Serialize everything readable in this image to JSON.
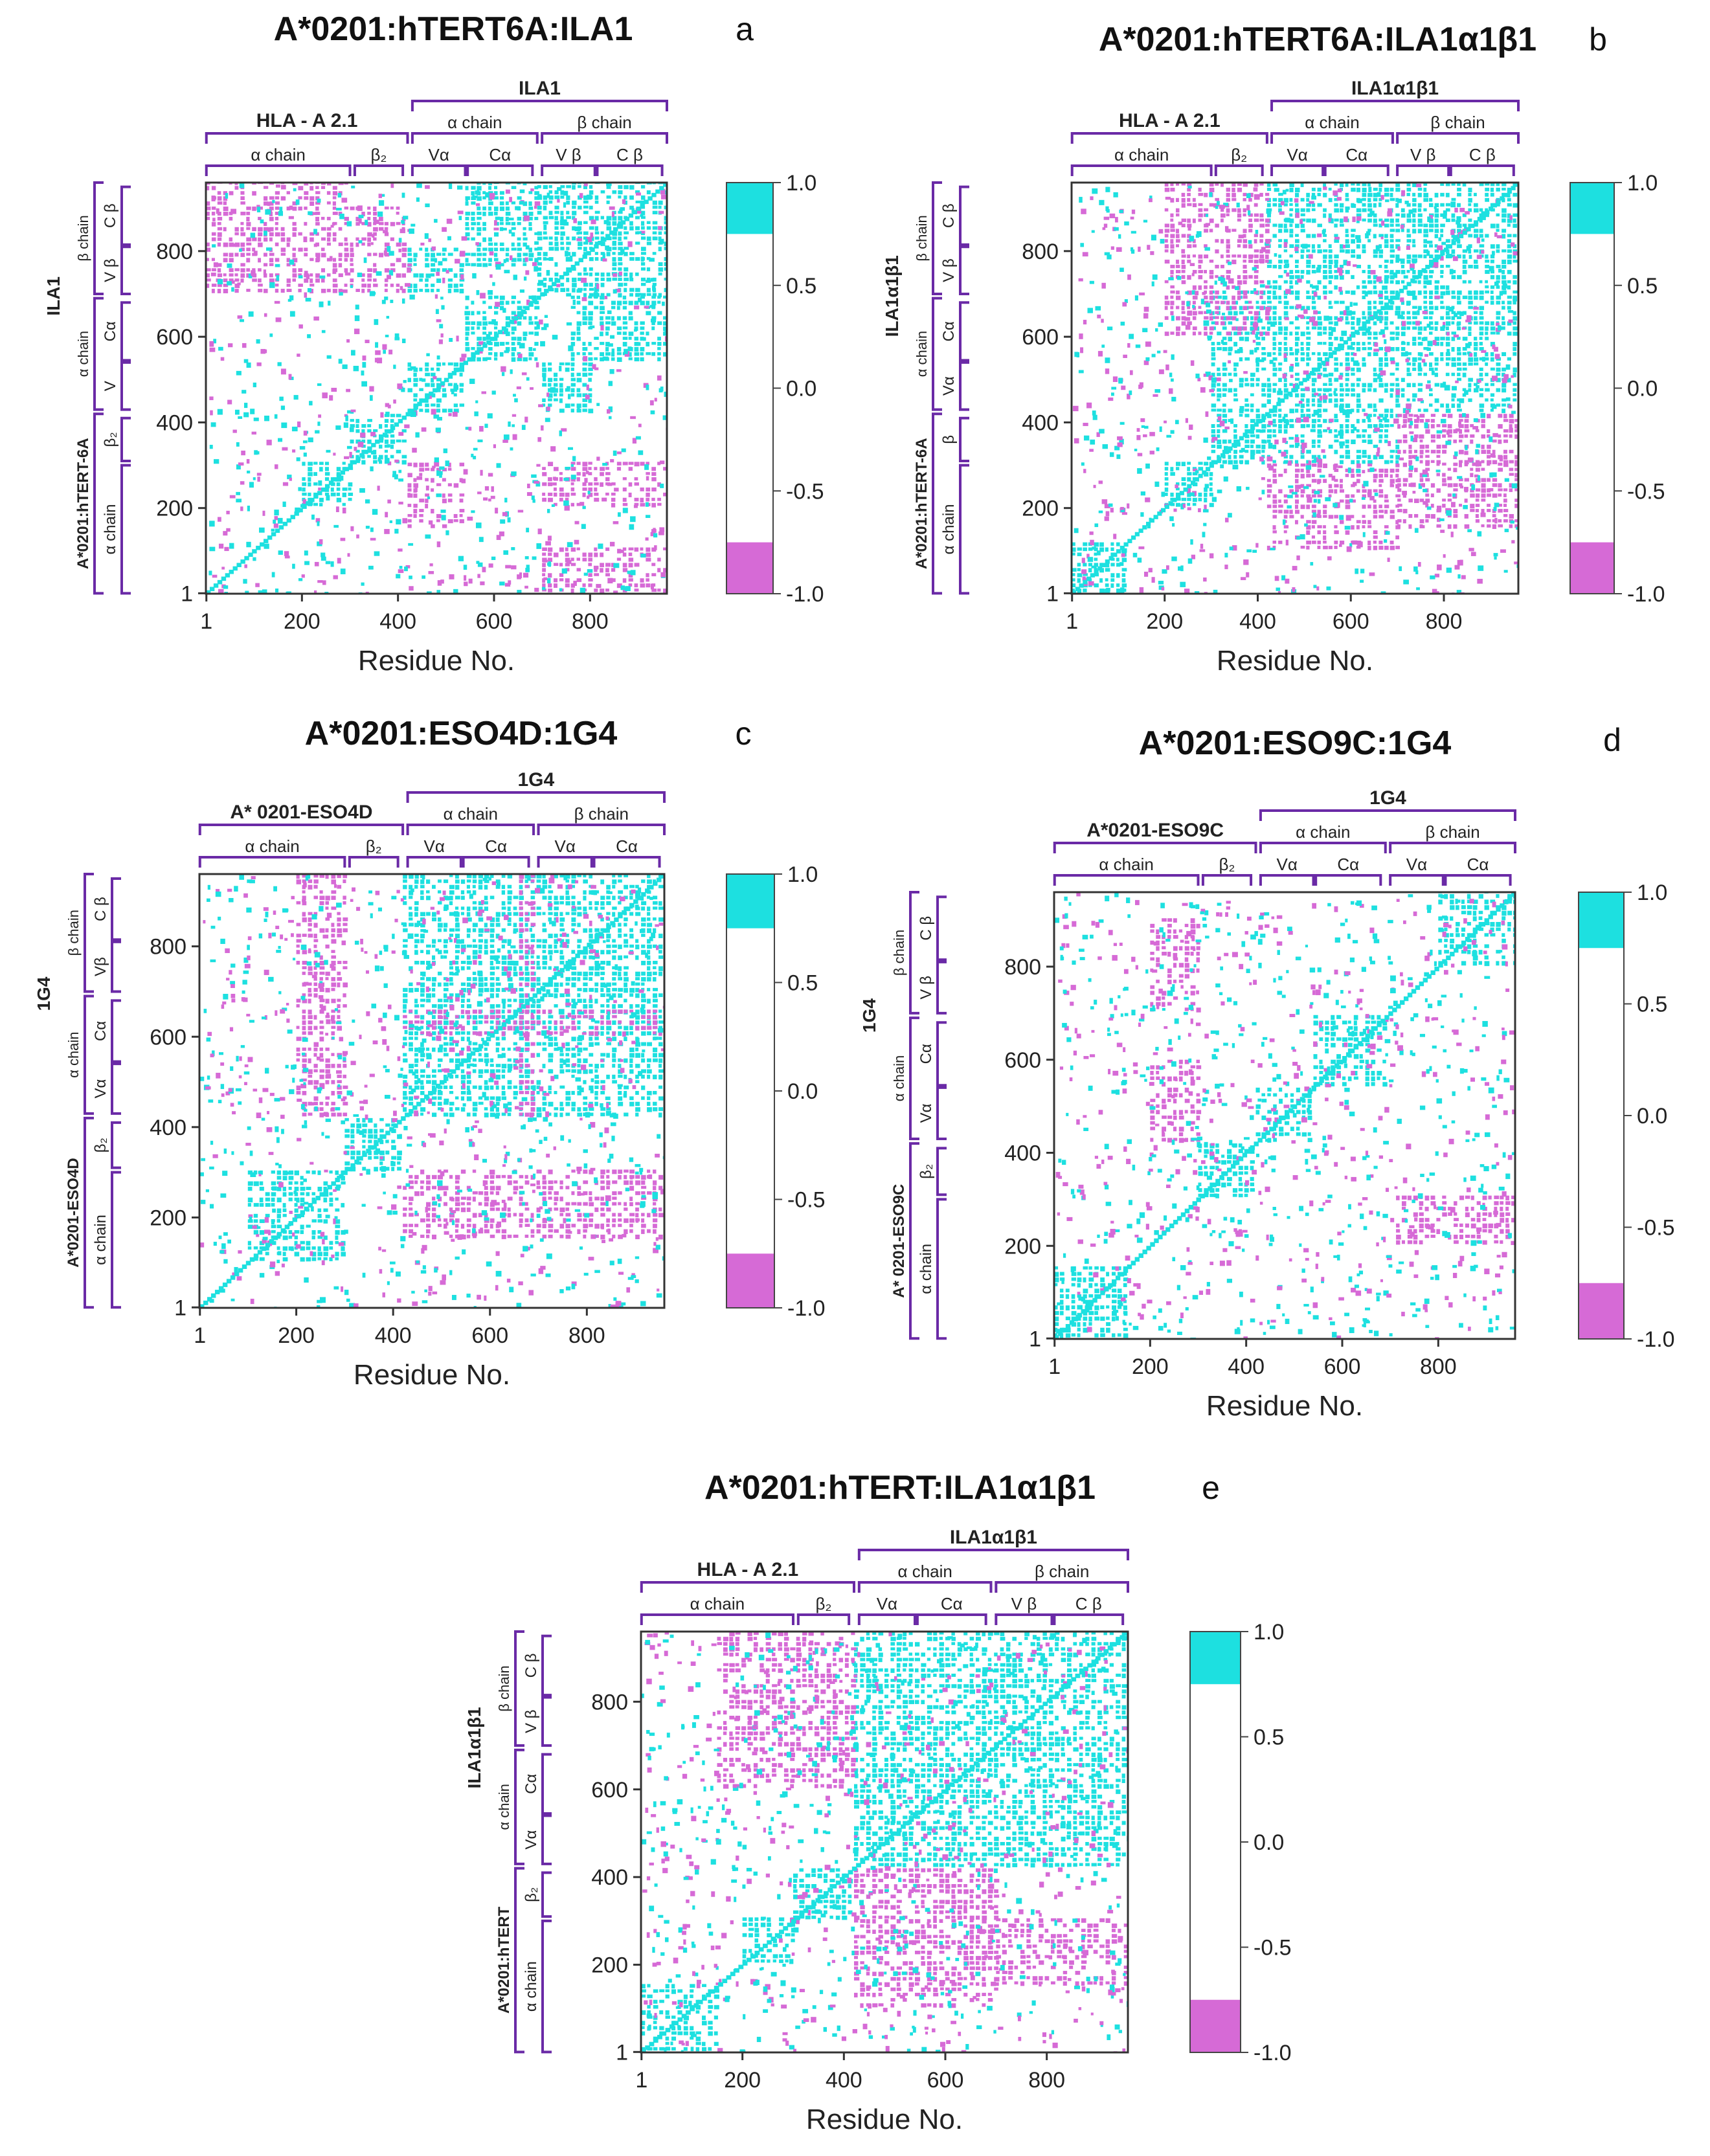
{
  "figure": {
    "axis_title": "Residue No.",
    "colors": {
      "positive": "#1de0e0",
      "negative": "#d66ad6",
      "frame": "#333333",
      "bracket": "#6a2aa6"
    }
  },
  "colorbar": {
    "ticks": [
      "1.0",
      "0.5",
      "0.0",
      "-0.5",
      "-1.0"
    ],
    "positive_threshold": 0.75,
    "negative_threshold": -0.75
  },
  "chart_data": [
    {
      "type": "heatmap",
      "panel": "a",
      "title": "A*0201:hTERT6A:ILA1",
      "xlabel": "Residue No.",
      "xlim": [
        1,
        960
      ],
      "ylim": [
        1,
        960
      ],
      "x_ticks": [
        "1",
        "200",
        "400",
        "600",
        "800"
      ],
      "y_ticks": [
        "1",
        "200",
        "400",
        "600",
        "800"
      ],
      "colorbar_range": [
        -1.0,
        1.0
      ],
      "top_groups": [
        {
          "label": "HLA - A 2.1",
          "from": 1,
          "to": 420
        },
        {
          "label": "ILA1",
          "from": 430,
          "to": 960
        }
      ],
      "top_subgroups": [
        {
          "label": "α chain",
          "from": 430,
          "to": 690
        },
        {
          "label": "β chain",
          "from": 700,
          "to": 960
        }
      ],
      "top_domains": [
        {
          "label": "α chain",
          "from": 1,
          "to": 300
        },
        {
          "label": "β₂",
          "from": 310,
          "to": 410
        },
        {
          "label": "Vα",
          "from": 430,
          "to": 540
        },
        {
          "label": "Cα",
          "from": 545,
          "to": 680
        },
        {
          "label": "V β",
          "from": 700,
          "to": 810
        },
        {
          "label": "C β",
          "from": 815,
          "to": 950
        }
      ],
      "left_groups": [
        {
          "label": "A*0201:hTERT-6A",
          "from": 1,
          "to": 420
        },
        {
          "label": "ILA1",
          "from": 430,
          "to": 960
        }
      ],
      "left_subgroups": [
        {
          "label": "α chain",
          "from": 430,
          "to": 690
        },
        {
          "label": "β chain",
          "from": 700,
          "to": 960
        }
      ],
      "left_domains": [
        {
          "label": "α chain",
          "from": 1,
          "to": 300
        },
        {
          "label": "β₂",
          "from": 310,
          "to": 410
        },
        {
          "label": "V",
          "from": 430,
          "to": 540
        },
        {
          "label": "Cα",
          "from": 545,
          "to": 680
        },
        {
          "label": "V β",
          "from": 700,
          "to": 810
        },
        {
          "label": "C β",
          "from": 815,
          "to": 950
        }
      ],
      "positive_blocks": [
        [
          540,
          690,
          540,
          690
        ],
        [
          690,
          960,
          690,
          960
        ],
        [
          420,
          540,
          420,
          540
        ],
        [
          300,
          420,
          300,
          420
        ],
        [
          200,
          300,
          200,
          300
        ],
        [
          540,
          690,
          760,
          960
        ],
        [
          760,
          960,
          540,
          690
        ],
        [
          420,
          540,
          700,
          800
        ],
        [
          700,
          800,
          420,
          540
        ]
      ],
      "negative_blocks": [
        [
          0,
          300,
          700,
          960
        ],
        [
          300,
          420,
          700,
          900
        ],
        [
          700,
          960,
          0,
          100
        ],
        [
          700,
          960,
          200,
          300
        ],
        [
          420,
          540,
          150,
          300
        ]
      ]
    },
    {
      "type": "heatmap",
      "panel": "b",
      "title": "A*0201:hTERT6A:ILA1α1β1",
      "xlabel": "Residue No.",
      "xlim": [
        1,
        960
      ],
      "ylim": [
        1,
        960
      ],
      "x_ticks": [
        "1",
        "200",
        "400",
        "600",
        "800"
      ],
      "y_ticks": [
        "1",
        "200",
        "400",
        "600",
        "800"
      ],
      "colorbar_range": [
        -1.0,
        1.0
      ],
      "top_groups": [
        {
          "label": "HLA - A 2.1",
          "from": 1,
          "to": 420
        },
        {
          "label": "ILA1α1β1",
          "from": 430,
          "to": 960
        }
      ],
      "top_subgroups": [
        {
          "label": "α chain",
          "from": 430,
          "to": 690
        },
        {
          "label": "β chain",
          "from": 700,
          "to": 960
        }
      ],
      "top_domains": [
        {
          "label": "α chain",
          "from": 1,
          "to": 300
        },
        {
          "label": "β₂",
          "from": 310,
          "to": 410
        },
        {
          "label": "Vα",
          "from": 430,
          "to": 540
        },
        {
          "label": "Cα",
          "from": 545,
          "to": 680
        },
        {
          "label": "V β",
          "from": 700,
          "to": 810
        },
        {
          "label": "C β",
          "from": 815,
          "to": 950
        }
      ],
      "left_groups": [
        {
          "label": "A*0201:hTERT-6A",
          "from": 1,
          "to": 420
        },
        {
          "label": "ILA1α1β1",
          "from": 430,
          "to": 960
        }
      ],
      "left_subgroups": [
        {
          "label": "α chain",
          "from": 430,
          "to": 690
        },
        {
          "label": "β chain",
          "from": 700,
          "to": 960
        }
      ],
      "left_domains": [
        {
          "label": "α chain",
          "from": 1,
          "to": 300
        },
        {
          "label": "β",
          "from": 310,
          "to": 410
        },
        {
          "label": "Vα",
          "from": 430,
          "to": 540
        },
        {
          "label": "Cα",
          "from": 545,
          "to": 680
        },
        {
          "label": "V β",
          "from": 700,
          "to": 810
        },
        {
          "label": "C β",
          "from": 815,
          "to": 950
        }
      ],
      "positive_blocks": [
        [
          420,
          960,
          420,
          960
        ],
        [
          200,
          300,
          200,
          300
        ],
        [
          300,
          420,
          300,
          420
        ],
        [
          0,
          120,
          0,
          120
        ],
        [
          420,
          700,
          300,
          420
        ],
        [
          300,
          420,
          420,
          700
        ]
      ],
      "negative_blocks": [
        [
          200,
          420,
          600,
          960
        ],
        [
          700,
          960,
          300,
          420
        ],
        [
          420,
          700,
          100,
          300
        ],
        [
          700,
          960,
          150,
          300
        ]
      ]
    },
    {
      "type": "heatmap",
      "panel": "c",
      "title": "A*0201:ESO4D:1G4",
      "xlabel": "Residue No.",
      "xlim": [
        1,
        960
      ],
      "ylim": [
        1,
        960
      ],
      "x_ticks": [
        "1",
        "200",
        "400",
        "600",
        "800"
      ],
      "y_ticks": [
        "1",
        "200",
        "400",
        "600",
        "800"
      ],
      "colorbar_range": [
        -1.0,
        1.0
      ],
      "top_groups": [
        {
          "label": "A* 0201-ESO4D",
          "from": 1,
          "to": 420
        },
        {
          "label": "1G4",
          "from": 430,
          "to": 960
        }
      ],
      "top_subgroups": [
        {
          "label": "α chain",
          "from": 430,
          "to": 690
        },
        {
          "label": "β chain",
          "from": 700,
          "to": 960
        }
      ],
      "top_domains": [
        {
          "label": "α chain",
          "from": 1,
          "to": 300
        },
        {
          "label": "β₂",
          "from": 310,
          "to": 410
        },
        {
          "label": "Vα",
          "from": 430,
          "to": 540
        },
        {
          "label": "Cα",
          "from": 545,
          "to": 680
        },
        {
          "label": "Vα",
          "from": 700,
          "to": 810
        },
        {
          "label": "Cα",
          "from": 815,
          "to": 950
        }
      ],
      "left_groups": [
        {
          "label": "A*0201-ESO4D",
          "from": 1,
          "to": 420
        },
        {
          "label": "1G4",
          "from": 430,
          "to": 960
        }
      ],
      "left_subgroups": [
        {
          "label": "α chain",
          "from": 430,
          "to": 690
        },
        {
          "label": "β chain",
          "from": 700,
          "to": 960
        }
      ],
      "left_domains": [
        {
          "label": "α chain",
          "from": 1,
          "to": 300
        },
        {
          "label": "β₂",
          "from": 310,
          "to": 410
        },
        {
          "label": "Vα",
          "from": 430,
          "to": 540
        },
        {
          "label": "Cα",
          "from": 545,
          "to": 680
        },
        {
          "label": "Vβ",
          "from": 700,
          "to": 810
        },
        {
          "label": "C β",
          "from": 815,
          "to": 950
        }
      ],
      "positive_blocks": [
        [
          420,
          960,
          420,
          960
        ],
        [
          300,
          420,
          300,
          420
        ],
        [
          100,
          300,
          100,
          300
        ]
      ],
      "negative_blocks": [
        [
          200,
          300,
          420,
          960
        ],
        [
          420,
          960,
          150,
          300
        ],
        [
          660,
          690,
          420,
          960
        ],
        [
          420,
          960,
          600,
          660
        ]
      ]
    },
    {
      "type": "heatmap",
      "panel": "d",
      "title": "A*0201:ESO9C:1G4",
      "xlabel": "Residue No.",
      "xlim": [
        1,
        960
      ],
      "ylim": [
        1,
        960
      ],
      "x_ticks": [
        "1",
        "200",
        "400",
        "600",
        "800"
      ],
      "y_ticks": [
        "1",
        "200",
        "400",
        "600",
        "800"
      ],
      "colorbar_range": [
        -1.0,
        1.0
      ],
      "top_groups": [
        {
          "label": "A*0201-ESO9C",
          "from": 1,
          "to": 420
        },
        {
          "label": "1G4",
          "from": 430,
          "to": 960
        }
      ],
      "top_subgroups": [
        {
          "label": "α chain",
          "from": 430,
          "to": 690
        },
        {
          "label": "β chain",
          "from": 700,
          "to": 960
        }
      ],
      "top_domains": [
        {
          "label": "α chain",
          "from": 1,
          "to": 300
        },
        {
          "label": "β₂",
          "from": 310,
          "to": 410
        },
        {
          "label": "Vα",
          "from": 430,
          "to": 540
        },
        {
          "label": "Cα",
          "from": 545,
          "to": 680
        },
        {
          "label": "Vα",
          "from": 700,
          "to": 810
        },
        {
          "label": "Cα",
          "from": 815,
          "to": 950
        }
      ],
      "left_groups": [
        {
          "label": "A* 0201-ESO9C",
          "from": 1,
          "to": 420
        },
        {
          "label": "1G4",
          "from": 430,
          "to": 960
        }
      ],
      "left_subgroups": [
        {
          "label": "α chain",
          "from": 430,
          "to": 690
        },
        {
          "label": "β chain",
          "from": 700,
          "to": 960
        }
      ],
      "left_domains": [
        {
          "label": "α chain",
          "from": 1,
          "to": 300
        },
        {
          "label": "β₂",
          "from": 310,
          "to": 410
        },
        {
          "label": "Vα",
          "from": 430,
          "to": 540
        },
        {
          "label": "Cα",
          "from": 545,
          "to": 680
        },
        {
          "label": "V β",
          "from": 700,
          "to": 810
        },
        {
          "label": "C β",
          "from": 815,
          "to": 950
        }
      ],
      "positive_blocks": [
        [
          420,
          540,
          420,
          540
        ],
        [
          300,
          420,
          300,
          420
        ],
        [
          540,
          690,
          540,
          690
        ],
        [
          800,
          960,
          800,
          960
        ],
        [
          0,
          150,
          0,
          150
        ]
      ],
      "negative_blocks": [
        [
          200,
          300,
          700,
          900
        ],
        [
          700,
          960,
          200,
          300
        ],
        [
          200,
          300,
          420,
          600
        ]
      ]
    },
    {
      "type": "heatmap",
      "panel": "e",
      "title": "A*0201:hTERT:ILA1α1β1",
      "xlabel": "Residue No.",
      "xlim": [
        1,
        960
      ],
      "ylim": [
        1,
        960
      ],
      "x_ticks": [
        "1",
        "200",
        "400",
        "600",
        "800"
      ],
      "y_ticks": [
        "1",
        "200",
        "400",
        "600",
        "800"
      ],
      "colorbar_range": [
        -1.0,
        1.0
      ],
      "top_groups": [
        {
          "label": "HLA - A 2.1",
          "from": 1,
          "to": 420
        },
        {
          "label": "ILA1α1β1",
          "from": 430,
          "to": 960
        }
      ],
      "top_subgroups": [
        {
          "label": "α chain",
          "from": 430,
          "to": 690
        },
        {
          "label": "β chain",
          "from": 700,
          "to": 960
        }
      ],
      "top_domains": [
        {
          "label": "α chain",
          "from": 1,
          "to": 300
        },
        {
          "label": "β₂",
          "from": 310,
          "to": 410
        },
        {
          "label": "Vα",
          "from": 430,
          "to": 540
        },
        {
          "label": "Cα",
          "from": 545,
          "to": 680
        },
        {
          "label": "V β",
          "from": 700,
          "to": 810
        },
        {
          "label": "C β",
          "from": 815,
          "to": 950
        }
      ],
      "left_groups": [
        {
          "label": "A*0201:hTERT",
          "from": 1,
          "to": 420
        },
        {
          "label": "ILA1α1β1",
          "from": 430,
          "to": 960
        }
      ],
      "left_subgroups": [
        {
          "label": "α chain",
          "from": 430,
          "to": 690
        },
        {
          "label": "β chain",
          "from": 700,
          "to": 960
        }
      ],
      "left_domains": [
        {
          "label": "α chain",
          "from": 1,
          "to": 300
        },
        {
          "label": "β₂",
          "from": 310,
          "to": 410
        },
        {
          "label": "Vα",
          "from": 430,
          "to": 540
        },
        {
          "label": "Cα",
          "from": 545,
          "to": 680
        },
        {
          "label": "V β",
          "from": 700,
          "to": 810
        },
        {
          "label": "C β",
          "from": 815,
          "to": 950
        }
      ],
      "positive_blocks": [
        [
          420,
          960,
          420,
          960
        ],
        [
          200,
          300,
          200,
          300
        ],
        [
          0,
          150,
          0,
          150
        ],
        [
          300,
          420,
          300,
          420
        ]
      ],
      "negative_blocks": [
        [
          150,
          420,
          600,
          960
        ],
        [
          700,
          960,
          150,
          300
        ],
        [
          420,
          700,
          100,
          300
        ],
        [
          420,
          700,
          300,
          420
        ]
      ]
    }
  ]
}
